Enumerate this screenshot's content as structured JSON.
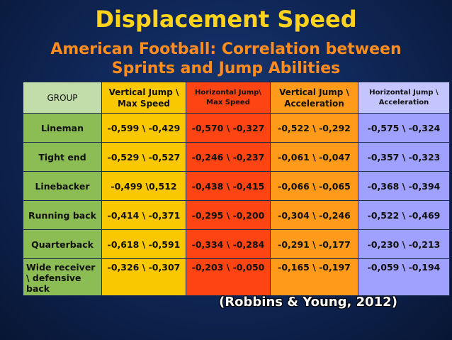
{
  "title": "Displacement Speed",
  "subtitle_line1": "American Football: Correlation between",
  "subtitle_line2": "Sprints and Jump Abilities",
  "table": {
    "headers": [
      "GROUP",
      "Vertical Jump \\ Max Speed",
      "Horizontal Jump\\ Max Speed",
      "Vertical Jump \\ Acceleration",
      "Horizontal Jump \\ Acceleration"
    ],
    "rows": [
      {
        "group": "Lineman",
        "values": [
          "-0,599 \\ -0,429",
          "-0,570 \\ -0,327",
          "-0,522 \\ -0,292",
          "-0,575 \\ -0,324"
        ]
      },
      {
        "group": "Tight end",
        "values": [
          "-0,529 \\ -0,527",
          "-0,246 \\ -0,237",
          "-0,061 \\ -0,047",
          "-0,357 \\ -0,323"
        ]
      },
      {
        "group": "Linebacker",
        "values": [
          "-0,499 \\0,512",
          "-0,438 \\ -0,415",
          "-0,066 \\ -0,065",
          "-0,368 \\ -0,394"
        ]
      },
      {
        "group": "Running back",
        "values": [
          "-0,414 \\ -0,371",
          "-0,295 \\ -0,200",
          "-0,304 \\ -0,246",
          "-0,522 \\ -0,469"
        ]
      },
      {
        "group": "Quarterback",
        "values": [
          "-0,618 \\ -0,591",
          "-0,334 \\ -0,284",
          "-0,291 \\ -0,177",
          "-0,230 \\ -0,213"
        ]
      },
      {
        "group": "Wide receiver \\ defensive back",
        "values": [
          "-0,326 \\ -0,307",
          "-0,203 \\ -0,050",
          "-0,165 \\ -0,197",
          "-0,059 \\ -0,194"
        ]
      }
    ]
  },
  "citation": "(Robbins & Young, 2012)",
  "colors": {
    "group_col": "#8cbd54",
    "vertical_max": "#fac800",
    "horizontal_max": "#ff4414",
    "vertical_acc": "#ff9a1a",
    "horizontal_acc": "#a0a0ff",
    "title": "#ffd21e",
    "subtitle": "#ff8c1e"
  }
}
